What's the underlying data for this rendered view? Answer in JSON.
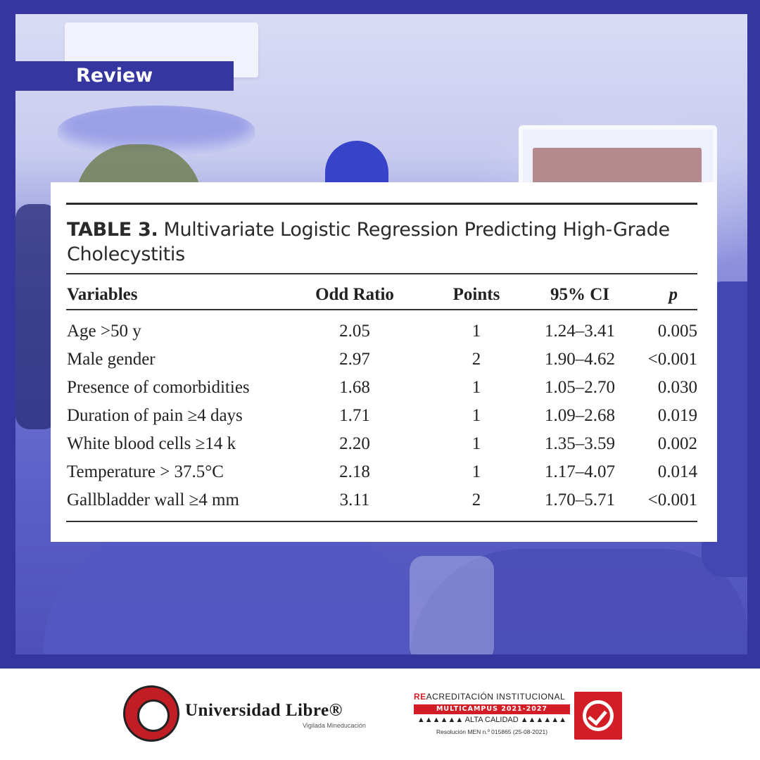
{
  "tag": "Review",
  "table": {
    "label": "TABLE 3.",
    "title": "Multivariate Logistic Regression Predicting High-Grade Cholecystitis",
    "columns": [
      "Variables",
      "Odd Ratio",
      "Points",
      "95% CI",
      "p"
    ],
    "rows": [
      [
        "Age >50 y",
        "2.05",
        "1",
        "1.24–3.41",
        "0.005"
      ],
      [
        "Male gender",
        "2.97",
        "2",
        "1.90–4.62",
        "<0.001"
      ],
      [
        "Presence of comorbidities",
        "1.68",
        "1",
        "1.05–2.70",
        "0.030"
      ],
      [
        "Duration of pain ≥4 days",
        "1.71",
        "1",
        "1.09–2.68",
        "0.019"
      ],
      [
        "White blood cells ≥14 k",
        "2.20",
        "1",
        "1.35–3.59",
        "0.002"
      ],
      [
        "Temperature > 37.5°C",
        "2.18",
        "1",
        "1.17–4.07",
        "0.014"
      ],
      [
        "Gallbladder wall ≥4 mm",
        "3.11",
        "2",
        "1.70–5.71",
        "<0.001"
      ]
    ]
  },
  "footer": {
    "university": {
      "name": "Universidad Libre®",
      "sub": "Vigilada Mineducación",
      "seal_text": "Universidad Libre Colombia"
    },
    "accreditation": {
      "prefix": "RE",
      "line1": "ACREDITACIÓN INSTITUCIONAL",
      "line2": "MULTICAMPUS 2021-2027",
      "line3": "▲▲▲▲▲▲ ALTA CALIDAD ▲▲▲▲▲▲",
      "line4": "Resolución MEN n.º 015865 (25-08-2021)"
    }
  },
  "colors": {
    "frame": "#3536a0",
    "accent_red": "#d21c26"
  }
}
